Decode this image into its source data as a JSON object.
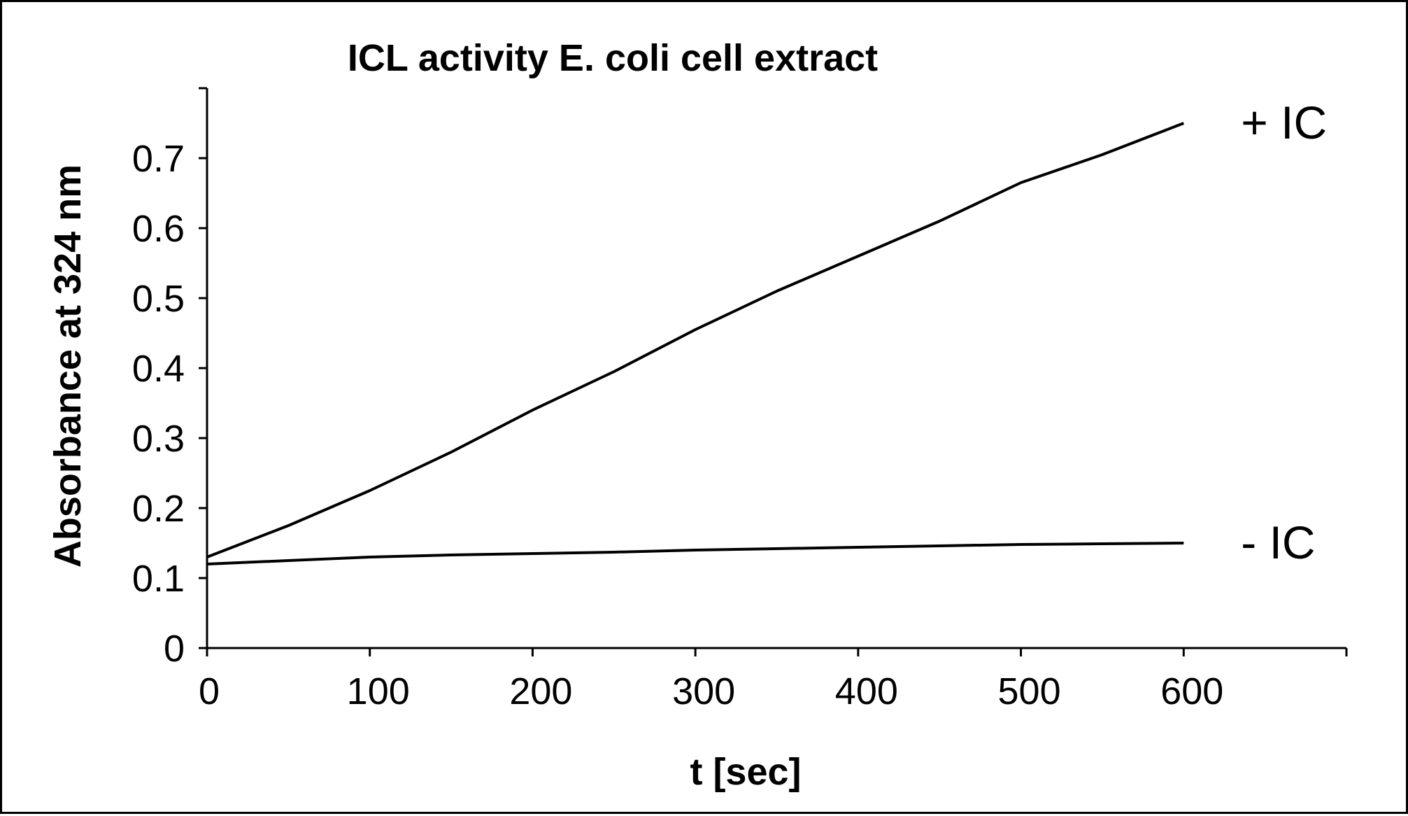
{
  "chart_data": {
    "type": "line",
    "title": "ICL activity E. coli cell extract",
    "xlabel": "t [sec]",
    "ylabel": "Absorbance at 324 nm",
    "xlim": [
      0,
      700
    ],
    "ylim": [
      0,
      0.8
    ],
    "x_ticks": [
      0,
      100,
      200,
      300,
      400,
      500,
      600
    ],
    "y_ticks": [
      0,
      0.1,
      0.2,
      0.3,
      0.4,
      0.5,
      0.6,
      0.7
    ],
    "y_tick_labels": [
      "0",
      "0.1",
      "0.2",
      "0.3",
      "0.4",
      "0.5",
      "0.6",
      "0.7"
    ],
    "x_tick_labels": [
      "0",
      "100",
      "200",
      "300",
      "400",
      "500",
      "600"
    ],
    "grid": false,
    "legend": "none",
    "series": [
      {
        "name": "+ IC",
        "color": "#000000",
        "x": [
          0,
          50,
          100,
          150,
          200,
          250,
          300,
          350,
          400,
          450,
          500,
          550,
          600
        ],
        "y": [
          0.13,
          0.175,
          0.225,
          0.28,
          0.34,
          0.395,
          0.455,
          0.51,
          0.56,
          0.61,
          0.665,
          0.705,
          0.75
        ]
      },
      {
        "name": "- IC",
        "color": "#000000",
        "x": [
          0,
          50,
          100,
          150,
          200,
          250,
          300,
          350,
          400,
          450,
          500,
          550,
          600
        ],
        "y": [
          0.12,
          0.125,
          0.13,
          0.133,
          0.135,
          0.137,
          0.14,
          0.142,
          0.144,
          0.146,
          0.148,
          0.149,
          0.15
        ]
      }
    ]
  }
}
